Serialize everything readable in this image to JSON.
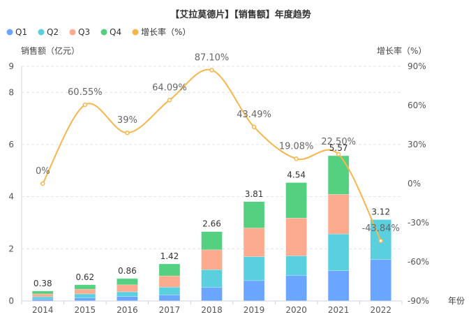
{
  "chart_data": {
    "type": "bar",
    "subtype": "stacked-bar-with-line",
    "title": "【艾拉莫德片】【销售额】年度趋势",
    "categories": [
      "2014",
      "2015",
      "2016",
      "2017",
      "2018",
      "2019",
      "2020",
      "2021",
      "2022"
    ],
    "xlabel": "年份",
    "ylabel": "销售额（亿元）",
    "ylabel_right": "增长率（%）",
    "ylim": [
      0,
      9
    ],
    "yticks": [
      0,
      2,
      4,
      6,
      8,
      9
    ],
    "ylim_right": [
      -90,
      90
    ],
    "yticks_right": [
      "-90%",
      "-60%",
      "-30%",
      "0%",
      "30%",
      "60%",
      "90%"
    ],
    "yticks_right_values": [
      -90,
      -60,
      -30,
      0,
      30,
      60,
      90
    ],
    "grid": true,
    "legend_position": "top-left",
    "series": [
      {
        "name": "Q1",
        "type": "bar",
        "color": "#6aa6ff",
        "values": [
          0.07,
          0.12,
          0.17,
          0.23,
          0.52,
          0.78,
          0.98,
          1.16,
          1.59
        ]
      },
      {
        "name": "Q2",
        "type": "bar",
        "color": "#5ad0df",
        "values": [
          0.09,
          0.15,
          0.18,
          0.3,
          0.68,
          0.92,
          0.75,
          1.41,
          1.53
        ]
      },
      {
        "name": "Q3",
        "type": "bar",
        "color": "#fdab8e",
        "values": [
          0.11,
          0.18,
          0.27,
          0.43,
          0.76,
          1.1,
          1.45,
          1.52,
          0
        ]
      },
      {
        "name": "Q4",
        "type": "bar",
        "color": "#55d081",
        "values": [
          0.11,
          0.17,
          0.24,
          0.46,
          0.7,
          1.01,
          1.36,
          1.48,
          0
        ]
      },
      {
        "name": "增长率（%）",
        "type": "line",
        "axis": "right",
        "color": "#f7b54c",
        "values": [
          0,
          60.55,
          39,
          64.09,
          87.1,
          43.49,
          19.08,
          22.5,
          -43.84
        ]
      }
    ],
    "totals": [
      "0.38",
      "0.62",
      "0.86",
      "1.42",
      "2.66",
      "3.81",
      "4.54",
      "5.57",
      "3.12"
    ],
    "line_labels": [
      "0%",
      "60.55%",
      "39%",
      "64.09%",
      "87.10%",
      "43.49%",
      "19.08%",
      "22.50%",
      "-43.84%"
    ]
  },
  "legend": [
    {
      "label": "Q1",
      "color": "#6aa6ff"
    },
    {
      "label": "Q2",
      "color": "#5ad0df"
    },
    {
      "label": "Q3",
      "color": "#fdab8e"
    },
    {
      "label": "Q4",
      "color": "#55d081"
    },
    {
      "label": "增长率（%）",
      "color": "#f7b54c"
    }
  ]
}
